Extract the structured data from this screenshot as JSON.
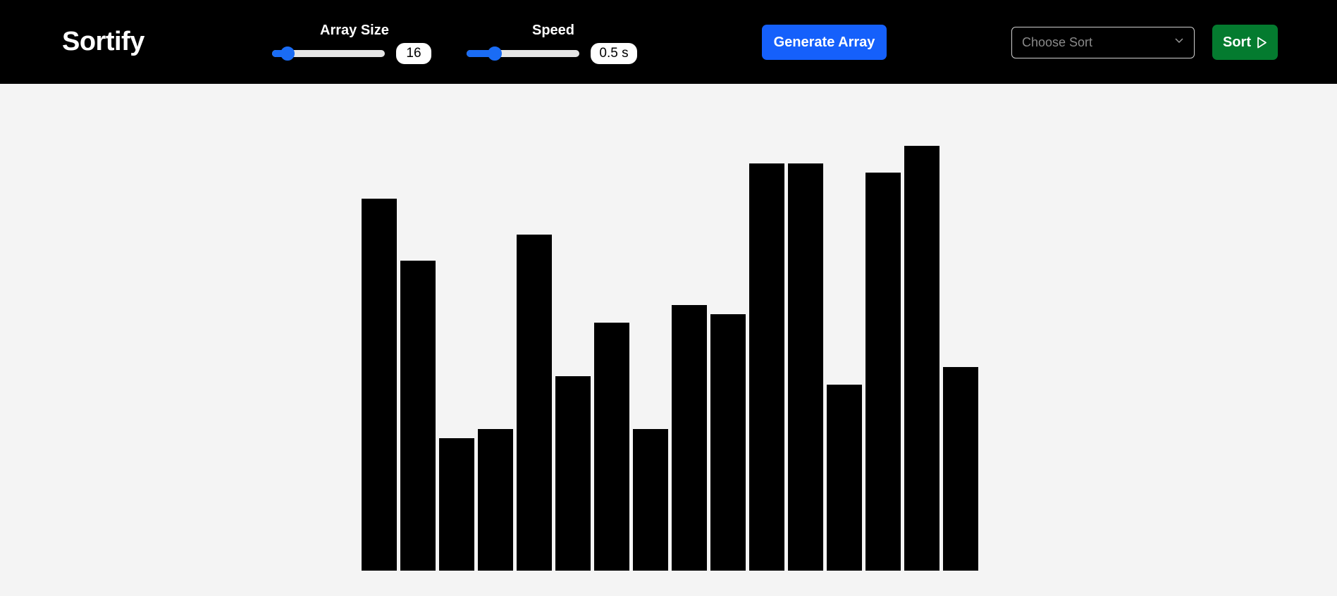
{
  "app": {
    "brand": "Sortify"
  },
  "controls": {
    "array_size": {
      "label": "Array Size",
      "value": "16",
      "fraction": 0.14
    },
    "speed": {
      "label": "Speed",
      "value": "0.5 s",
      "fraction": 0.25
    },
    "generate_label": "Generate Array",
    "sort_select": {
      "placeholder": "Choose Sort"
    },
    "sort_label": "Sort"
  },
  "colors": {
    "navbar_bg": "#000000",
    "accent_blue": "#1560fb",
    "sort_green": "#047b2f",
    "bar_color": "#000000",
    "canvas_bg": "#f4f4f4"
  },
  "icons": {
    "sort_select_chevron": "chevron-down-icon",
    "sort_button_icon": "play-icon"
  },
  "array": {
    "values": [
      84,
      70,
      30,
      32,
      76,
      44,
      56,
      32,
      60,
      58,
      92,
      92,
      42,
      90,
      96,
      46
    ],
    "max": 100
  }
}
